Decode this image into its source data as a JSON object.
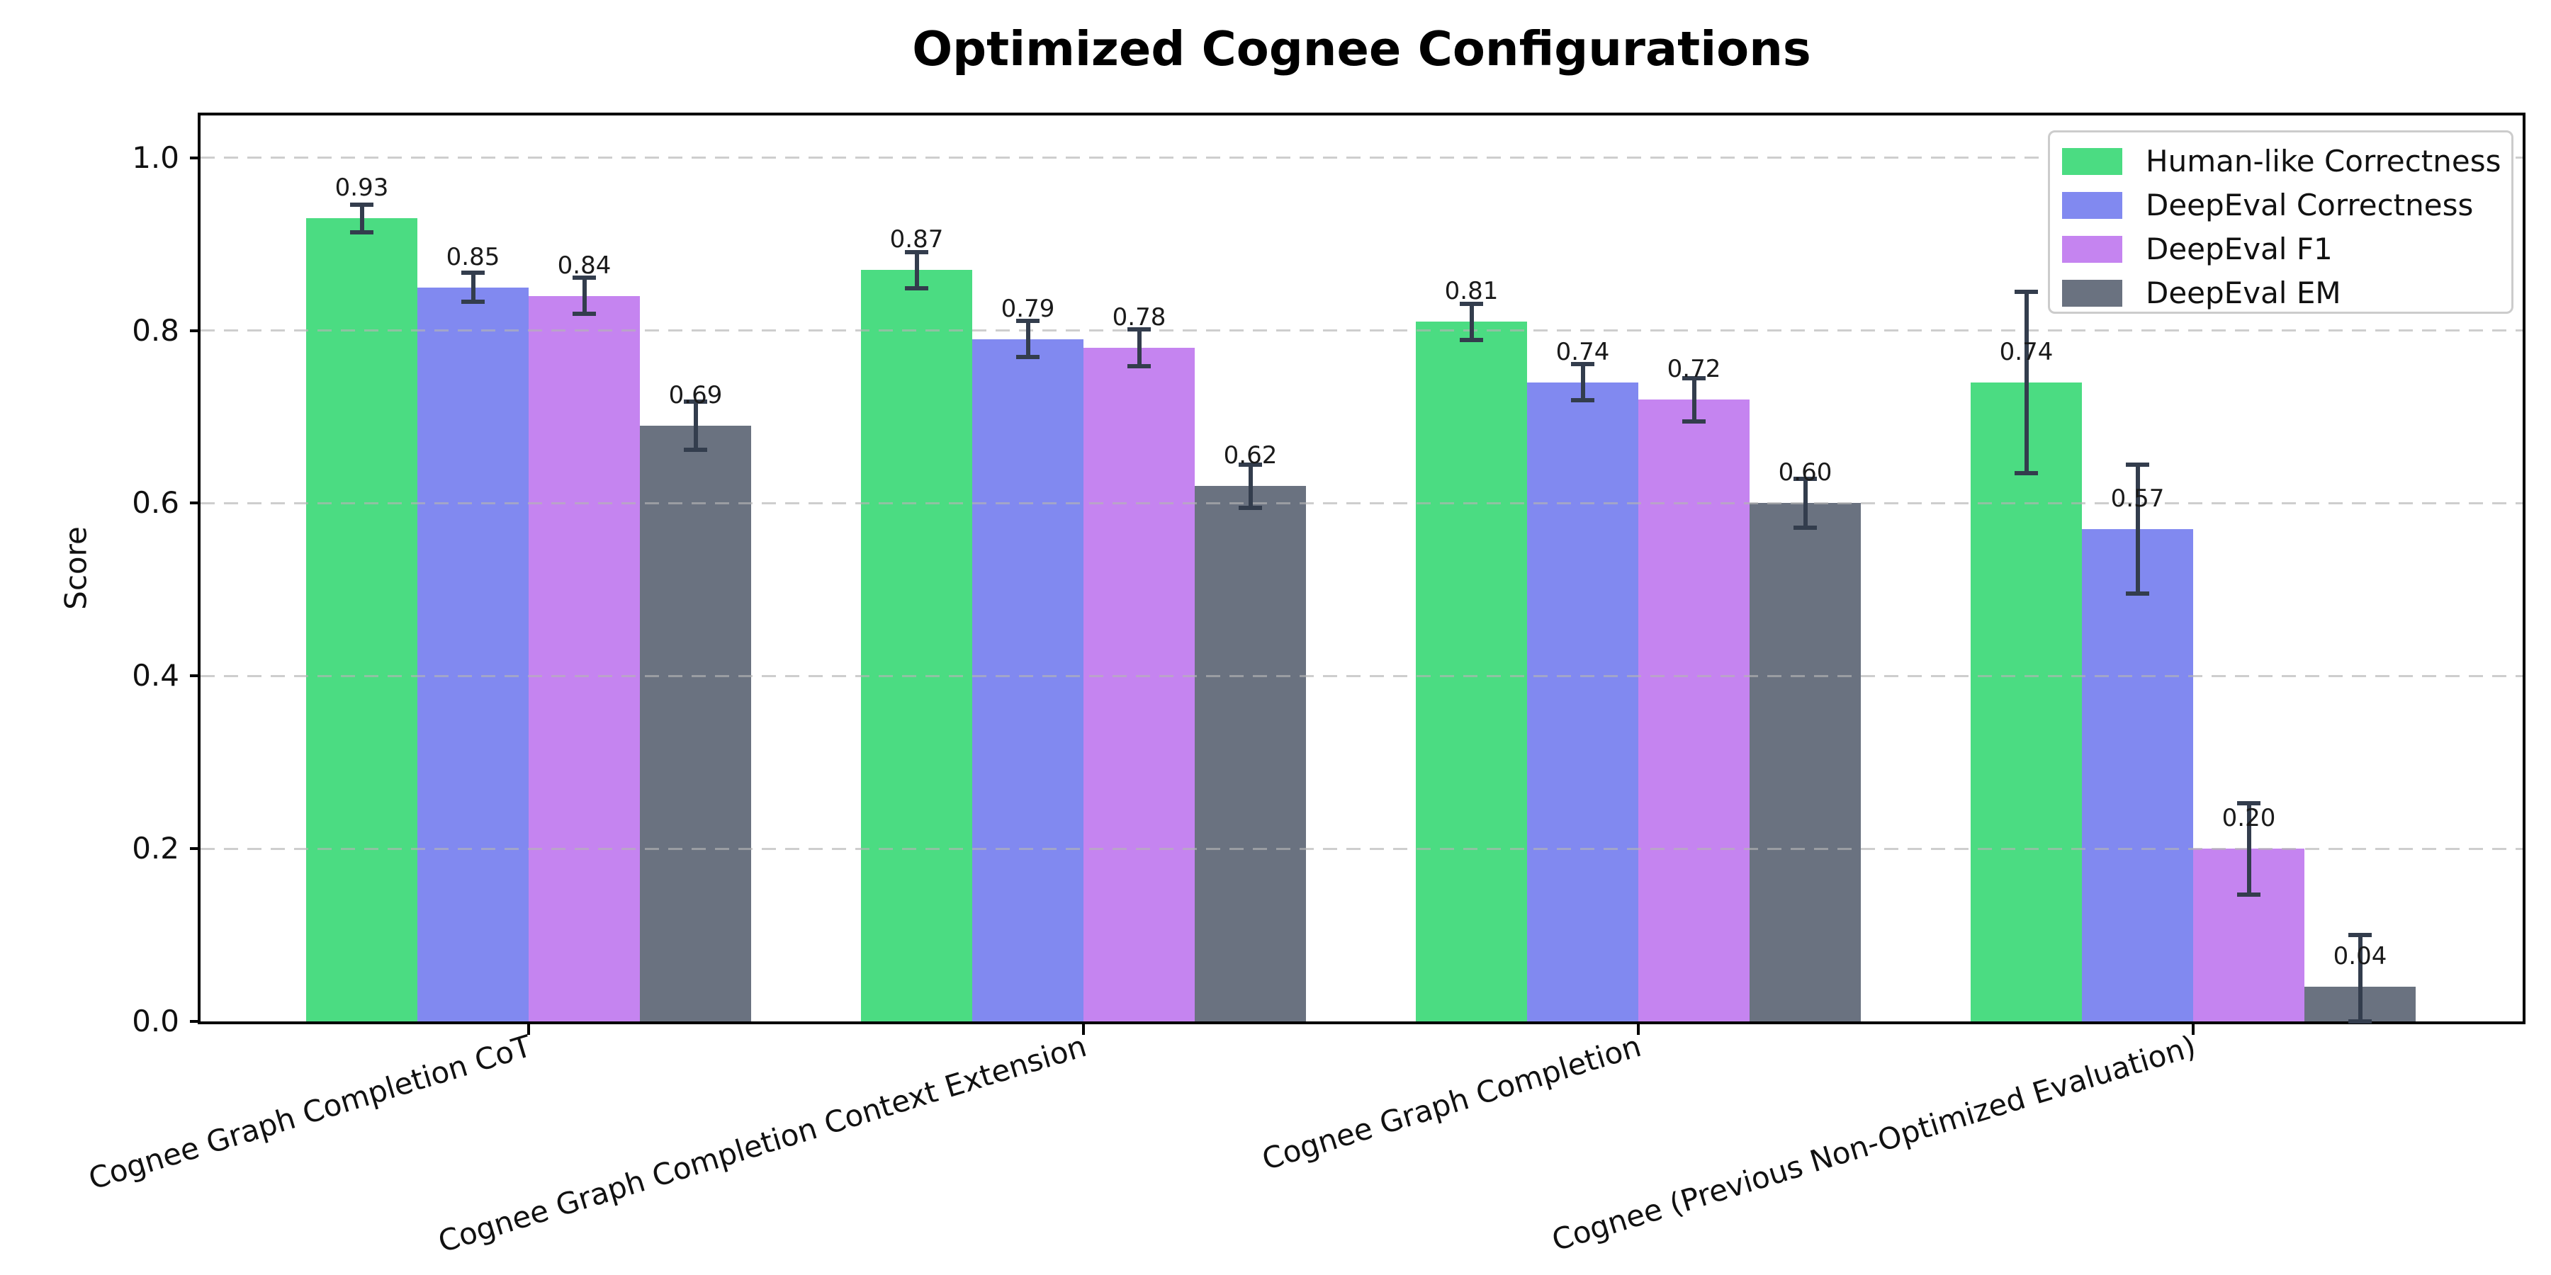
{
  "figure": {
    "background": "#FFFFFF"
  },
  "chart_data": {
    "type": "bar",
    "title": "Optimized Cognee Configurations",
    "xlabel": "",
    "ylabel": "Score",
    "ylim": [
      0,
      1.05
    ],
    "yticks": [
      "0.0",
      "0.2",
      "0.4",
      "0.6",
      "0.8",
      "1.0"
    ],
    "ytick_values": [
      0.0,
      0.2,
      0.4,
      0.6,
      0.8,
      1.0
    ],
    "grid": "horizontal dashed",
    "legend_position": "upper right",
    "categories": [
      "Cognee Graph Completion CoT",
      "Cognee Graph Completion Context Extension",
      "Cognee Graph Completion",
      "Cognee (Previous Non-Optimized Evaluation)"
    ],
    "series": [
      {
        "name": "Human-like Correctness",
        "color": "#4BDC82",
        "values": [
          0.93,
          0.87,
          0.81,
          0.74
        ],
        "errors": [
          [
            0.016,
            0.016
          ],
          [
            0.021,
            0.021
          ],
          [
            0.021,
            0.021
          ],
          [
            0.105,
            0.105
          ]
        ]
      },
      {
        "name": "DeepEval Correctness",
        "color": "#8189F0",
        "values": [
          0.85,
          0.79,
          0.74,
          0.57
        ],
        "errors": [
          [
            0.017,
            0.017
          ],
          [
            0.021,
            0.021
          ],
          [
            0.021,
            0.021
          ],
          [
            0.075,
            0.075
          ]
        ]
      },
      {
        "name": "DeepEval F1",
        "color": "#C584F0",
        "values": [
          0.84,
          0.78,
          0.72,
          0.2
        ],
        "errors": [
          [
            0.021,
            0.021
          ],
          [
            0.021,
            0.021
          ],
          [
            0.025,
            0.025
          ],
          [
            0.053,
            0.053
          ]
        ]
      },
      {
        "name": "DeepEval EM",
        "color": "#6A7280",
        "values": [
          0.69,
          0.62,
          0.6,
          0.04
        ],
        "errors": [
          [
            0.028,
            0.028
          ],
          [
            0.025,
            0.025
          ],
          [
            0.028,
            0.028
          ],
          [
            0.04,
            0.06
          ]
        ]
      }
    ],
    "value_labels": [
      [
        "0.93",
        "0.87",
        "0.81",
        "0.74"
      ],
      [
        "0.85",
        "0.79",
        "0.74",
        "0.57"
      ],
      [
        "0.84",
        "0.78",
        "0.72",
        "0.20"
      ],
      [
        "0.69",
        "0.62",
        "0.60",
        "0.04"
      ]
    ]
  },
  "colors": {
    "error_bar": "#333D4D",
    "grid": "#C8C8C8",
    "axis": "#000000",
    "text": "#111111",
    "legend_border": "#CCCCCC"
  }
}
